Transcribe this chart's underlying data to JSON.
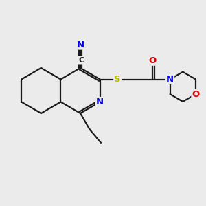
{
  "background_color": "#ebebeb",
  "bond_color": "#1a1a1a",
  "atom_colors": {
    "N": "#0000ee",
    "O": "#ee0000",
    "S": "#bbbb00",
    "C": "#1a1a1a"
  },
  "font_size": 8.5,
  "figsize": [
    3.0,
    3.0
  ],
  "dpi": 100
}
